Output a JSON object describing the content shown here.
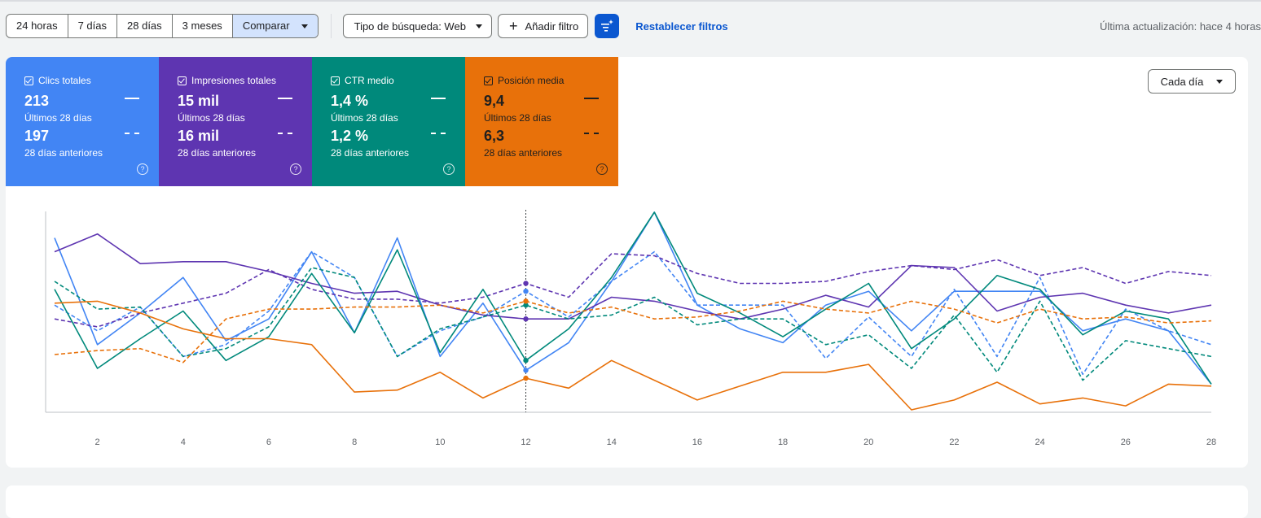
{
  "toolbar": {
    "ranges": [
      "24 horas",
      "7 días",
      "28 días",
      "3 meses"
    ],
    "compare_label": "Comparar",
    "search_type_label": "Tipo de búsqueda: Web",
    "add_filter_label": "Añadir filtro",
    "reset_label": "Restablecer filtros",
    "updated_label": "Última actualización: hace 4 horas"
  },
  "metrics": [
    {
      "title": "Clics totales",
      "current": "213",
      "current_label": "Últimos 28 días",
      "previous": "197",
      "previous_label": "28 días anteriores",
      "color": "#4285f4"
    },
    {
      "title": "Impresiones totales",
      "current": "15 mil",
      "current_label": "Últimos 28 días",
      "previous": "16 mil",
      "previous_label": "28 días anteriores",
      "color": "#5e35b1"
    },
    {
      "title": "CTR medio",
      "current": "1,4 %",
      "current_label": "Últimos 28 días",
      "previous": "1,2 %",
      "previous_label": "28 días anteriores",
      "color": "#00897b"
    },
    {
      "title": "Posición media",
      "current": "9,4",
      "current_label": "Últimos 28 días",
      "previous": "6,3",
      "previous_label": "28 días anteriores",
      "color": "#e8710a"
    }
  ],
  "granularity_label": "Cada día",
  "chart_data": {
    "type": "line",
    "x": [
      1,
      2,
      3,
      4,
      5,
      6,
      7,
      8,
      9,
      10,
      11,
      12,
      13,
      14,
      15,
      16,
      17,
      18,
      19,
      20,
      21,
      22,
      23,
      24,
      25,
      26,
      27,
      28
    ],
    "x_tick_labels": [
      "2",
      "4",
      "6",
      "8",
      "10",
      "12",
      "14",
      "16",
      "18",
      "20",
      "22",
      "24",
      "26",
      "28"
    ],
    "x_ticks": [
      2,
      4,
      6,
      8,
      10,
      12,
      14,
      16,
      18,
      20,
      22,
      24,
      26,
      28
    ],
    "ylim": [
      0,
      100
    ],
    "hover_x": 12,
    "grid": false,
    "series": [
      {
        "color": "#4285f4",
        "dashed": false,
        "values": [
          87,
          33,
          49,
          67,
          35,
          46,
          80,
          39,
          87,
          27,
          54,
          20,
          34,
          65,
          100,
          53,
          41,
          34,
          53,
          60,
          40,
          60,
          60,
          60,
          40,
          46,
          40,
          13
        ]
      },
      {
        "color": "#4285f4",
        "dashed": true,
        "values": [
          53,
          40,
          52,
          27,
          33,
          50,
          80,
          67,
          27,
          40,
          47,
          60,
          47,
          65,
          80,
          53,
          53,
          53,
          26,
          47,
          27,
          61,
          27,
          67,
          18,
          51,
          40,
          33
        ]
      },
      {
        "color": "#5e35b1",
        "dashed": false,
        "values": [
          80,
          89,
          74,
          75,
          75,
          70,
          64,
          59,
          60,
          53,
          48,
          46,
          46,
          57,
          55,
          50,
          46,
          51,
          58,
          52,
          73,
          72,
          50,
          57,
          59,
          53,
          49,
          53
        ]
      },
      {
        "color": "#5e35b1",
        "dashed": true,
        "values": [
          46,
          42,
          49,
          54,
          59,
          71,
          61,
          56,
          56,
          54,
          57,
          64,
          57,
          79,
          78,
          69,
          64,
          64,
          65,
          70,
          73,
          71,
          76,
          68,
          72,
          64,
          70,
          68
        ]
      },
      {
        "color": "#00897b",
        "dashed": false,
        "values": [
          61,
          21,
          36,
          50,
          25,
          37,
          69,
          39,
          81,
          29,
          61,
          25,
          41,
          67,
          100,
          59,
          49,
          37,
          51,
          64,
          31,
          46,
          68,
          61,
          38,
          50,
          46,
          13
        ]
      },
      {
        "color": "#00897b",
        "dashed": true,
        "values": [
          65,
          51,
          52,
          27,
          31,
          42,
          72,
          67,
          27,
          41,
          47,
          53,
          46,
          48,
          57,
          43,
          46,
          46,
          33,
          38,
          21,
          48,
          19,
          55,
          15,
          35,
          31,
          27
        ]
      },
      {
        "color": "#e8710a",
        "dashed": false,
        "values": [
          54,
          55,
          49,
          41,
          36,
          36,
          33,
          9,
          10,
          19,
          6,
          16,
          11,
          25,
          15,
          5,
          12,
          19,
          19,
          23,
          0,
          5,
          14,
          3,
          6,
          2,
          13,
          12
        ]
      },
      {
        "color": "#e8710a",
        "dashed": true,
        "values": [
          28,
          30,
          31,
          24,
          46,
          51,
          51,
          52,
          52,
          53,
          49,
          55,
          49,
          52,
          46,
          47,
          50,
          55,
          51,
          49,
          55,
          51,
          44,
          51,
          46,
          47,
          44,
          45
        ]
      }
    ]
  }
}
